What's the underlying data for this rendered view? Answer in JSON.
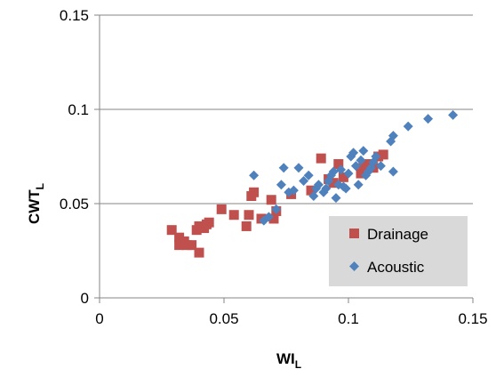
{
  "chart_data": {
    "type": "scatter",
    "title": "",
    "xlabel": {
      "main": "WI",
      "sub": "L"
    },
    "ylabel": {
      "main": "CWT",
      "sub": "L"
    },
    "xlim": [
      0,
      0.15
    ],
    "ylim": [
      0,
      0.15
    ],
    "x_ticks": [
      0,
      0.05,
      0.1,
      0.15
    ],
    "x_tick_labels": [
      "0",
      "0.05",
      "0.1",
      "0.15"
    ],
    "y_ticks": [
      0,
      0.05,
      0.1,
      0.15
    ],
    "y_tick_labels": [
      "0",
      "0.05",
      "0.1",
      "0.15"
    ],
    "grid": "horizontal",
    "legend_position": "bottom-right",
    "series": [
      {
        "name": "Drainage",
        "color": "#C0504D",
        "marker": "square",
        "points": [
          [
            0.029,
            0.036
          ],
          [
            0.032,
            0.032
          ],
          [
            0.032,
            0.028
          ],
          [
            0.034,
            0.03
          ],
          [
            0.035,
            0.028
          ],
          [
            0.037,
            0.028
          ],
          [
            0.039,
            0.036
          ],
          [
            0.04,
            0.024
          ],
          [
            0.04,
            0.038
          ],
          [
            0.042,
            0.037
          ],
          [
            0.043,
            0.039
          ],
          [
            0.044,
            0.04
          ],
          [
            0.049,
            0.047
          ],
          [
            0.054,
            0.044
          ],
          [
            0.059,
            0.038
          ],
          [
            0.06,
            0.044
          ],
          [
            0.061,
            0.054
          ],
          [
            0.062,
            0.056
          ],
          [
            0.065,
            0.042
          ],
          [
            0.069,
            0.052
          ],
          [
            0.07,
            0.042
          ],
          [
            0.071,
            0.046
          ],
          [
            0.077,
            0.055
          ],
          [
            0.085,
            0.057
          ],
          [
            0.089,
            0.074
          ],
          [
            0.092,
            0.063
          ],
          [
            0.094,
            0.061
          ],
          [
            0.096,
            0.071
          ],
          [
            0.098,
            0.064
          ],
          [
            0.105,
            0.066
          ],
          [
            0.106,
            0.07
          ],
          [
            0.108,
            0.071
          ],
          [
            0.11,
            0.069
          ],
          [
            0.112,
            0.075
          ],
          [
            0.114,
            0.076
          ]
        ]
      },
      {
        "name": "Acoustic",
        "color": "#4F81BD",
        "marker": "diamond",
        "points": [
          [
            0.062,
            0.065
          ],
          [
            0.066,
            0.041
          ],
          [
            0.068,
            0.043
          ],
          [
            0.071,
            0.047
          ],
          [
            0.073,
            0.06
          ],
          [
            0.074,
            0.069
          ],
          [
            0.076,
            0.056
          ],
          [
            0.078,
            0.057
          ],
          [
            0.08,
            0.069
          ],
          [
            0.082,
            0.062
          ],
          [
            0.084,
            0.065
          ],
          [
            0.086,
            0.054
          ],
          [
            0.087,
            0.058
          ],
          [
            0.088,
            0.06
          ],
          [
            0.09,
            0.056
          ],
          [
            0.091,
            0.058
          ],
          [
            0.092,
            0.062
          ],
          [
            0.093,
            0.065
          ],
          [
            0.094,
            0.067
          ],
          [
            0.095,
            0.053
          ],
          [
            0.096,
            0.06
          ],
          [
            0.097,
            0.068
          ],
          [
            0.098,
            0.059
          ],
          [
            0.099,
            0.058
          ],
          [
            0.1,
            0.066
          ],
          [
            0.101,
            0.075
          ],
          [
            0.102,
            0.077
          ],
          [
            0.103,
            0.07
          ],
          [
            0.104,
            0.06
          ],
          [
            0.105,
            0.073
          ],
          [
            0.106,
            0.078
          ],
          [
            0.107,
            0.065
          ],
          [
            0.108,
            0.067
          ],
          [
            0.109,
            0.069
          ],
          [
            0.11,
            0.072
          ],
          [
            0.111,
            0.075
          ],
          [
            0.113,
            0.07
          ],
          [
            0.117,
            0.083
          ],
          [
            0.118,
            0.086
          ],
          [
            0.118,
            0.067
          ],
          [
            0.124,
            0.091
          ],
          [
            0.132,
            0.095
          ],
          [
            0.142,
            0.097
          ]
        ]
      }
    ]
  }
}
